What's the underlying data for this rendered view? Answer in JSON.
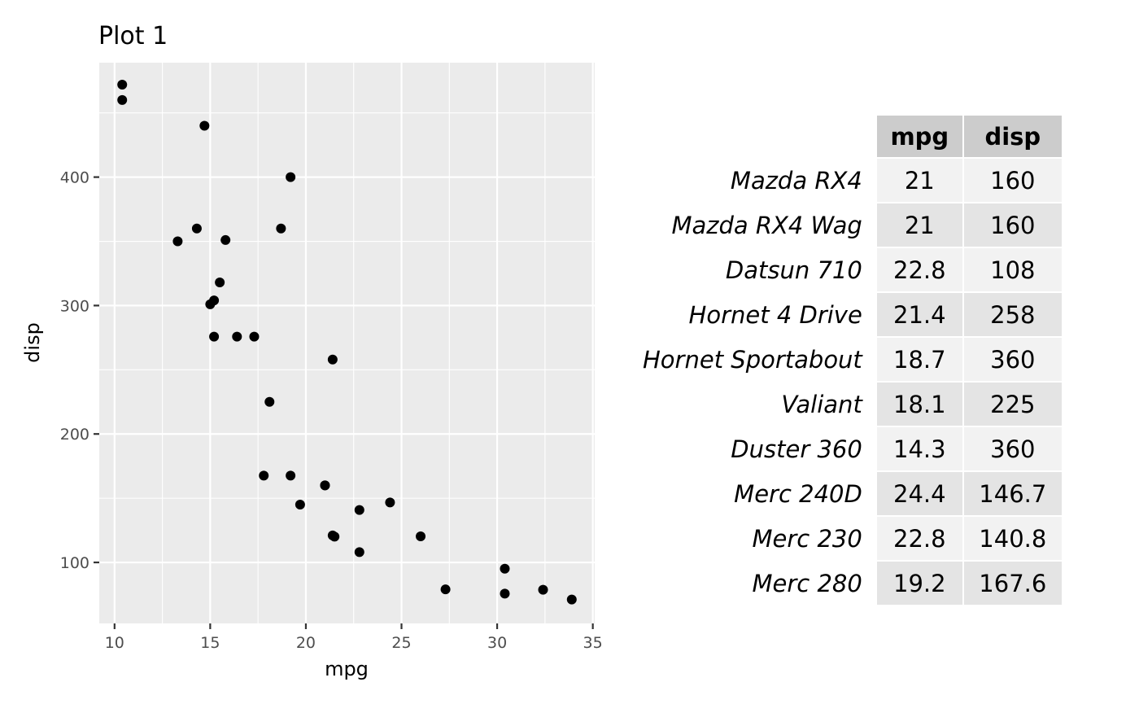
{
  "chart_data": [
    {
      "type": "scatter",
      "title": "Plot 1",
      "xlabel": "mpg",
      "ylabel": "disp",
      "xlim": [
        9.2,
        35.1
      ],
      "ylim": [
        52.5,
        489.1
      ],
      "x_ticks": [
        10,
        15,
        20,
        25,
        30,
        35
      ],
      "y_ticks": [
        100,
        200,
        300,
        400
      ],
      "grid": true,
      "points": [
        {
          "x": 21.0,
          "y": 160
        },
        {
          "x": 21.0,
          "y": 160
        },
        {
          "x": 22.8,
          "y": 108
        },
        {
          "x": 21.4,
          "y": 258
        },
        {
          "x": 18.7,
          "y": 360
        },
        {
          "x": 18.1,
          "y": 225
        },
        {
          "x": 14.3,
          "y": 360
        },
        {
          "x": 24.4,
          "y": 146.7
        },
        {
          "x": 22.8,
          "y": 140.8
        },
        {
          "x": 19.2,
          "y": 167.6
        },
        {
          "x": 17.8,
          "y": 167.6
        },
        {
          "x": 16.4,
          "y": 275.8
        },
        {
          "x": 17.3,
          "y": 275.8
        },
        {
          "x": 15.2,
          "y": 275.8
        },
        {
          "x": 10.4,
          "y": 472
        },
        {
          "x": 10.4,
          "y": 460
        },
        {
          "x": 14.7,
          "y": 440
        },
        {
          "x": 32.4,
          "y": 78.7
        },
        {
          "x": 30.4,
          "y": 75.7
        },
        {
          "x": 33.9,
          "y": 71.1
        },
        {
          "x": 21.5,
          "y": 120.1
        },
        {
          "x": 15.5,
          "y": 318
        },
        {
          "x": 15.2,
          "y": 304
        },
        {
          "x": 13.3,
          "y": 350
        },
        {
          "x": 19.2,
          "y": 400
        },
        {
          "x": 27.3,
          "y": 79
        },
        {
          "x": 26.0,
          "y": 120.3
        },
        {
          "x": 30.4,
          "y": 95.1
        },
        {
          "x": 15.8,
          "y": 351
        },
        {
          "x": 19.7,
          "y": 145
        },
        {
          "x": 15.0,
          "y": 301
        },
        {
          "x": 21.4,
          "y": 121
        }
      ]
    },
    {
      "type": "table",
      "columns": [
        "mpg",
        "disp"
      ],
      "rows": [
        {
          "name": "Mazda RX4",
          "mpg": "21",
          "disp": "160"
        },
        {
          "name": "Mazda RX4 Wag",
          "mpg": "21",
          "disp": "160"
        },
        {
          "name": "Datsun 710",
          "mpg": "22.8",
          "disp": "108"
        },
        {
          "name": "Hornet 4 Drive",
          "mpg": "21.4",
          "disp": "258"
        },
        {
          "name": "Hornet Sportabout",
          "mpg": "18.7",
          "disp": "360"
        },
        {
          "name": "Valiant",
          "mpg": "18.1",
          "disp": "225"
        },
        {
          "name": "Duster 360",
          "mpg": "14.3",
          "disp": "360"
        },
        {
          "name": "Merc 240D",
          "mpg": "24.4",
          "disp": "146.7"
        },
        {
          "name": "Merc 230",
          "mpg": "22.8",
          "disp": "140.8"
        },
        {
          "name": "Merc 280",
          "mpg": "19.2",
          "disp": "167.6"
        }
      ]
    }
  ],
  "colors": {
    "panel_background": "#ebebeb",
    "grid_lines": "#ffffff",
    "points": "#000000",
    "table_header": "#cccccc",
    "table_row_light": "#f2f2f2",
    "table_row_dark": "#e4e4e4"
  }
}
